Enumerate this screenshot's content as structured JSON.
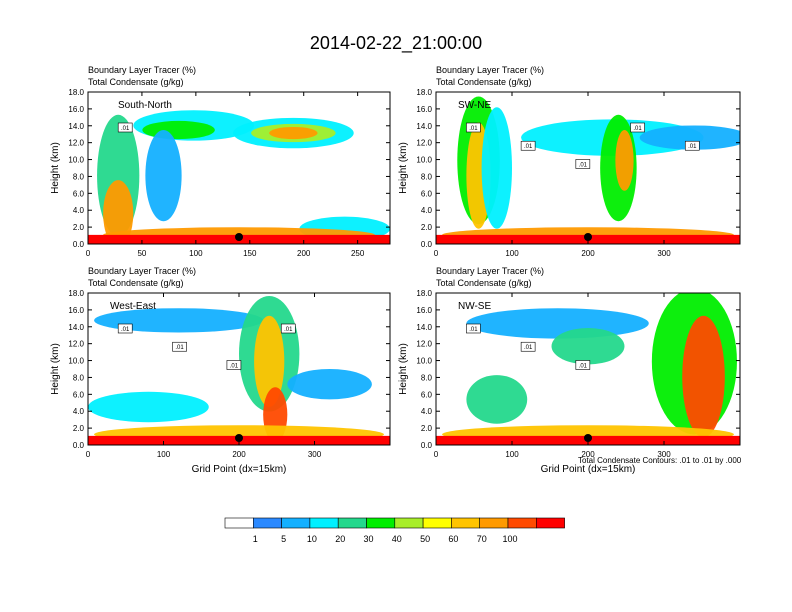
{
  "figure": {
    "title": "2014-02-22_21:00:00",
    "footnote": "Total Condensate Contours: .01 to .01 by .000"
  },
  "colors": {
    "levels": [
      "#ffffff",
      "#2b89ff",
      "#14b0ff",
      "#00f0ff",
      "#24d88c",
      "#00ee00",
      "#a8ee2a",
      "#ffff00",
      "#ffc400",
      "#ff9a00",
      "#ff4a00",
      "#ff0000"
    ],
    "contour": "#000000"
  },
  "colorbar": {
    "labels": [
      "1",
      "5",
      "10",
      "20",
      "30",
      "40",
      "50",
      "60",
      "70",
      "100"
    ]
  },
  "chart_data": [
    {
      "type": "heatmap",
      "panel": "top-left",
      "line1": "Boundary Layer Tracer    (%)",
      "line2": "Total Condensate   (g/kg)",
      "label": "South-North",
      "xlabel": "",
      "ylabel": "Height (km)",
      "xlim": [
        0,
        280
      ],
      "ylim": [
        0,
        18
      ],
      "xticks": [
        "0",
        "50",
        "100",
        "150",
        "200",
        "250"
      ],
      "yticks": [
        "0.0",
        "2.0",
        "4.0",
        "6.0",
        "8.0",
        "10.0",
        "12.0",
        "14.0",
        "16.0",
        "18.0"
      ],
      "contour_labels": [
        ".01"
      ],
      "marker_x": 140
    },
    {
      "type": "heatmap",
      "panel": "top-right",
      "line1": "Boundary Layer Tracer    (%)",
      "line2": "Total Condensate   (g/kg)",
      "label": "SW-NE",
      "xlabel": "",
      "ylabel": "Height (km)",
      "xlim": [
        0,
        400
      ],
      "ylim": [
        0,
        18
      ],
      "xticks": [
        "0",
        "100",
        "200",
        "300"
      ],
      "yticks": [
        "0.0",
        "2.0",
        "4.0",
        "6.0",
        "8.0",
        "10.0",
        "12.0",
        "14.0",
        "16.0",
        "18.0"
      ],
      "contour_labels": [
        ".01",
        ".01",
        ".01",
        ".01",
        ".01"
      ],
      "marker_x": 200
    },
    {
      "type": "heatmap",
      "panel": "bottom-left",
      "line1": "Boundary Layer Tracer    (%)",
      "line2": "Total Condensate   (g/kg)",
      "label": "West-East",
      "xlabel": "Grid Point (dx=15km)",
      "ylabel": "Height (km)",
      "xlim": [
        0,
        400
      ],
      "ylim": [
        0,
        18
      ],
      "xticks": [
        "0",
        "100",
        "200",
        "300"
      ],
      "yticks": [
        "0.0",
        "2.0",
        "4.0",
        "6.0",
        "8.0",
        "10.0",
        "12.0",
        "14.0",
        "16.0",
        "18.0"
      ],
      "contour_labels": [
        ".01",
        ".01",
        ".01",
        ".01"
      ],
      "marker_x": 200
    },
    {
      "type": "heatmap",
      "panel": "bottom-right",
      "line1": "Boundary Layer Tracer    (%)",
      "line2": "Total Condensate   (g/kg)",
      "label": "NW-SE",
      "xlabel": "Grid Point (dx=15km)",
      "ylabel": "Height (km)",
      "xlim": [
        0,
        400
      ],
      "ylim": [
        0,
        18
      ],
      "xticks": [
        "0",
        "100",
        "200",
        "300"
      ],
      "yticks": [
        "0.0",
        "2.0",
        "4.0",
        "6.0",
        "8.0",
        "10.0",
        "12.0",
        "14.0",
        "16.0",
        "18.0"
      ],
      "contour_labels": [
        ".01",
        ".01",
        ".01"
      ],
      "marker_x": 200
    }
  ]
}
